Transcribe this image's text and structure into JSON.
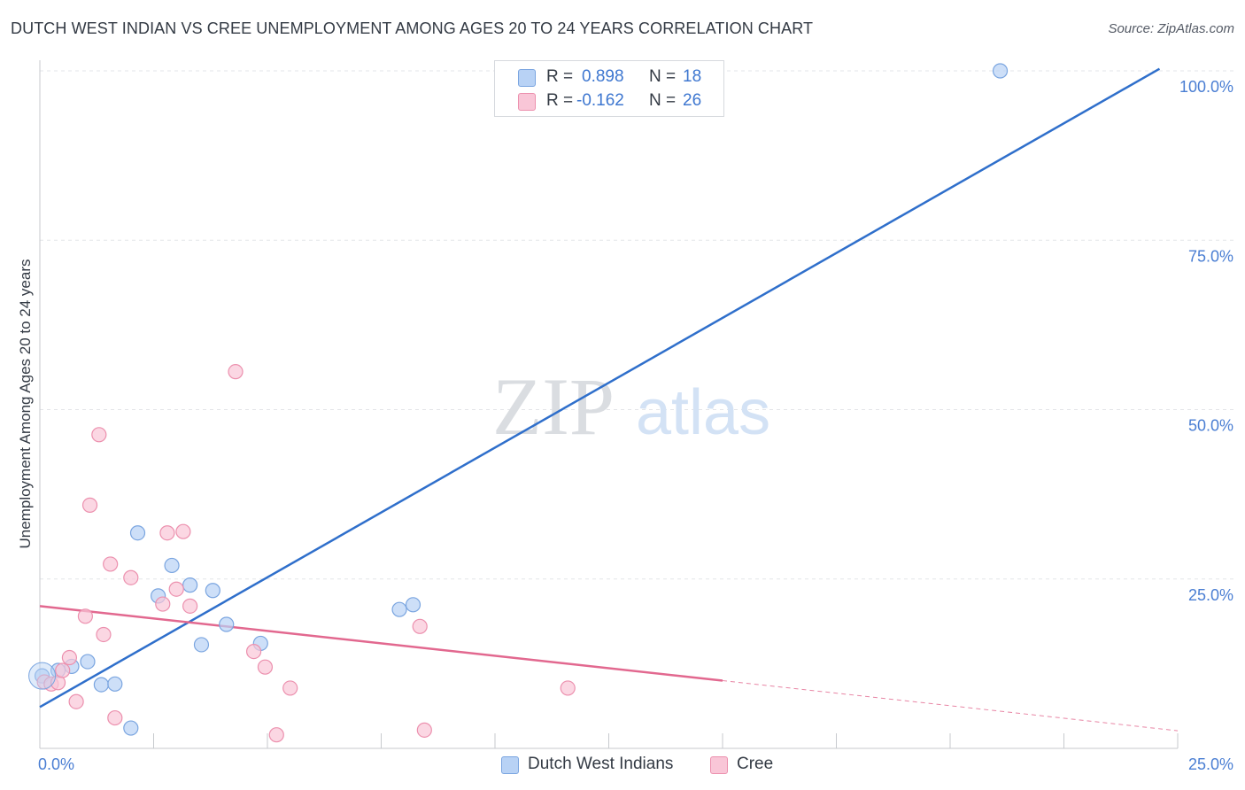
{
  "header": {
    "title": "DUTCH WEST INDIAN VS CREE UNEMPLOYMENT AMONG AGES 20 TO 24 YEARS CORRELATION CHART",
    "source": "Source: ZipAtlas.com"
  },
  "watermark": {
    "zip": "ZIP",
    "atlas": "atlas"
  },
  "legend": {
    "rows": [
      {
        "r_label": "R =",
        "r_value": "0.898",
        "n_label": "N =",
        "n_value": "18"
      },
      {
        "r_label": "R =",
        "r_value": "-0.162",
        "n_label": "N =",
        "n_value": "26"
      }
    ],
    "series": [
      "Dutch West Indians",
      "Cree"
    ]
  },
  "colors": {
    "blue_fill": "#b8d2f5",
    "blue_stroke": "#7aa5e0",
    "blue_line": "#2f6fcb",
    "pink_fill": "#f9c6d7",
    "pink_stroke": "#ec90ae",
    "pink_line": "#e2688f",
    "grid": "#e3e5e8",
    "tick_text": "#4a7ed3"
  },
  "chart_data": {
    "type": "scatter",
    "title": "DUTCH WEST INDIAN VS CREE UNEMPLOYMENT AMONG AGES 20 TO 24 YEARS CORRELATION CHART",
    "xlabel": "",
    "ylabel": "Unemployment Among Ages 20 to 24 years",
    "xlim": [
      0,
      25
    ],
    "ylim": [
      0,
      103
    ],
    "x_tick_labels": [
      "0.0%",
      "25.0%"
    ],
    "y_ticks": [
      25,
      50,
      75,
      100
    ],
    "y_tick_labels": [
      "25.0%",
      "50.0%",
      "75.0%",
      "100.0%"
    ],
    "grid": true,
    "series": [
      {
        "name": "Dutch West Indians",
        "r": 0.898,
        "n": 18,
        "points": [
          [
            0.05,
            10.7
          ],
          [
            0.4,
            11.5
          ],
          [
            0.7,
            12.1
          ],
          [
            1.05,
            12.8
          ],
          [
            1.35,
            9.4
          ],
          [
            1.65,
            9.5
          ],
          [
            2.0,
            3.0
          ],
          [
            2.15,
            31.8
          ],
          [
            2.6,
            22.5
          ],
          [
            2.9,
            27.0
          ],
          [
            3.3,
            24.1
          ],
          [
            3.55,
            15.3
          ],
          [
            3.8,
            23.3
          ],
          [
            4.1,
            18.3
          ],
          [
            4.85,
            15.5
          ],
          [
            7.9,
            20.5
          ],
          [
            8.2,
            21.2
          ],
          [
            21.1,
            100.0
          ]
        ],
        "trend": {
          "x": [
            0,
            24.6
          ],
          "y": [
            6.1,
            100.3
          ],
          "dashed_to": null
        }
      },
      {
        "name": "Cree",
        "r": -0.162,
        "n": 26,
        "points": [
          [
            0.1,
            9.8
          ],
          [
            0.25,
            9.5
          ],
          [
            0.4,
            9.7
          ],
          [
            0.5,
            11.5
          ],
          [
            0.65,
            13.4
          ],
          [
            0.8,
            6.9
          ],
          [
            1.0,
            19.5
          ],
          [
            1.1,
            35.9
          ],
          [
            1.3,
            46.3
          ],
          [
            1.4,
            16.8
          ],
          [
            1.55,
            27.2
          ],
          [
            1.65,
            4.5
          ],
          [
            2.0,
            25.2
          ],
          [
            2.7,
            21.3
          ],
          [
            2.8,
            31.8
          ],
          [
            3.0,
            23.5
          ],
          [
            3.15,
            32.0
          ],
          [
            3.3,
            21.0
          ],
          [
            4.3,
            55.6
          ],
          [
            4.7,
            14.3
          ],
          [
            4.95,
            12.0
          ],
          [
            5.2,
            2.0
          ],
          [
            5.5,
            8.9
          ],
          [
            8.35,
            18.0
          ],
          [
            8.45,
            2.7
          ],
          [
            11.6,
            8.9
          ]
        ],
        "trend": {
          "x": [
            0,
            15.0
          ],
          "y": [
            21.0,
            10.0
          ],
          "dashed_to": [
            25.0,
            2.6
          ]
        }
      }
    ]
  }
}
